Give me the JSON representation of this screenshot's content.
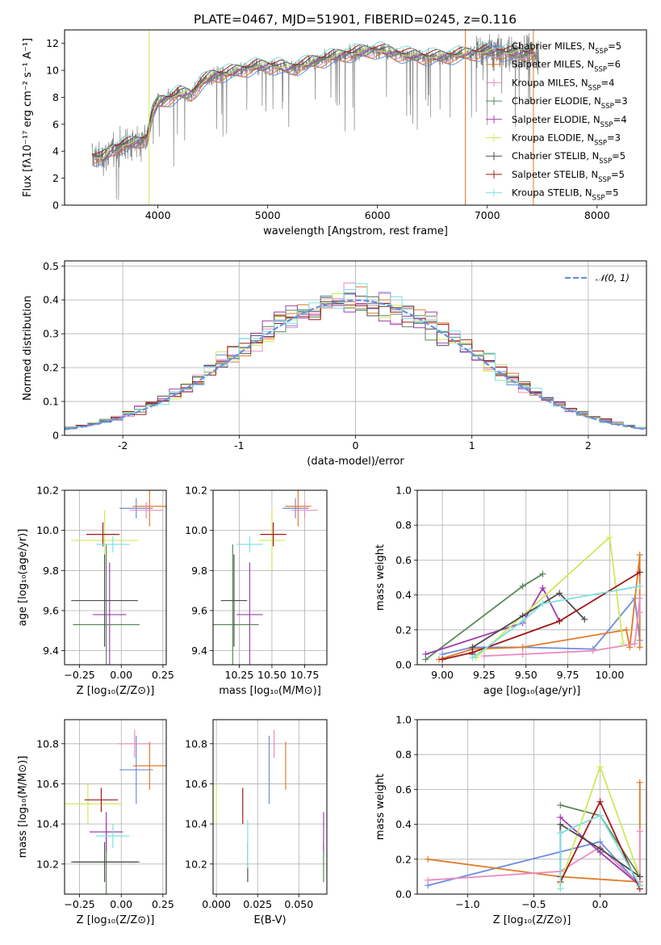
{
  "title": "PLATE=0467, MJD=51901, FIBERID=0245, z=0.116",
  "colors": {
    "Chabrier MILES": "#6a8fdd",
    "Salpeter MILES": "#e07b27",
    "Kroupa MILES": "#ea8cc0",
    "Chabrier ELODIE": "#5a8a5a",
    "Salpeter ELODIE": "#a03cb0",
    "Kroupa ELODIE": "#cfe85c",
    "Chabrier STELIB": "#4d4d4d",
    "Salpeter STELIB": "#a01a1a",
    "Kroupa STELIB": "#7ee0e0",
    "gaussian": "#6a8fdd",
    "data": "#808080"
  },
  "chart_data": [
    {
      "type": "line",
      "xlabel": "wavelength [Angstrom, rest frame]",
      "ylabel": "Flux [fλ10⁻¹⁷ erg cm⁻² s⁻¹ A⁻¹]",
      "xlim": [
        3150,
        8450
      ],
      "ylim": [
        0,
        13
      ],
      "xticks": [
        4000,
        5000,
        6000,
        7000,
        8000
      ],
      "yticks": [
        0,
        2,
        4,
        6,
        8,
        10,
        12
      ],
      "grid": false,
      "legend": "upper-right",
      "legend_entries": [
        {
          "model": "Chabrier MILES",
          "label": "Chabrier MILES, N",
          "sub": "SSP",
          "tail": "=5"
        },
        {
          "model": "Salpeter MILES",
          "label": "Salpeter MILES, N",
          "sub": "SSP",
          "tail": "=6"
        },
        {
          "model": "Kroupa MILES",
          "label": "Kroupa MILES, N",
          "sub": "SSP",
          "tail": "=4"
        },
        {
          "model": "Chabrier ELODIE",
          "label": "Chabrier ELODIE, N",
          "sub": "SSP",
          "tail": "=3"
        },
        {
          "model": "Salpeter ELODIE",
          "label": "Salpeter ELODIE, N",
          "sub": "SSP",
          "tail": "=4"
        },
        {
          "model": "Kroupa ELODIE",
          "label": "Kroupa ELODIE, N",
          "sub": "SSP",
          "tail": "=3"
        },
        {
          "model": "Chabrier STELIB",
          "label": "Chabrier STELIB, N",
          "sub": "SSP",
          "tail": "=5"
        },
        {
          "model": "Salpeter STELIB",
          "label": "Salpeter STELIB, N",
          "sub": "SSP",
          "tail": "=5"
        },
        {
          "model": "Kroupa STELIB",
          "label": "Kroupa STELIB, N",
          "sub": "SSP",
          "tail": "=5"
        }
      ],
      "spectrum_knots": [
        [
          3400,
          3.6
        ],
        [
          3500,
          3.5
        ],
        [
          3600,
          4.2
        ],
        [
          3700,
          4.5
        ],
        [
          3800,
          4.6
        ],
        [
          3900,
          5.0
        ],
        [
          3950,
          6.8
        ],
        [
          4000,
          7.6
        ],
        [
          4100,
          7.9
        ],
        [
          4200,
          8.3
        ],
        [
          4300,
          8.2
        ],
        [
          4400,
          9.1
        ],
        [
          4500,
          9.6
        ],
        [
          4700,
          9.9
        ],
        [
          4900,
          10.3
        ],
        [
          5100,
          10.3
        ],
        [
          5200,
          10.1
        ],
        [
          5400,
          10.6
        ],
        [
          5600,
          11.0
        ],
        [
          5800,
          11.3
        ],
        [
          6000,
          11.5
        ],
        [
          6200,
          11.2
        ],
        [
          6400,
          11.0
        ],
        [
          6600,
          11.0
        ],
        [
          6800,
          11.2
        ],
        [
          7000,
          11.4
        ],
        [
          7200,
          11.3
        ],
        [
          7400,
          11.2
        ]
      ],
      "model_end": 7420,
      "data_end": 7470
    },
    {
      "type": "histogram",
      "xlabel": "(data-model)/error",
      "ylabel": "Normed distribution",
      "xlim": [
        -2.5,
        2.5
      ],
      "ylim": [
        0,
        0.515
      ],
      "xticks": [
        -2,
        -1,
        0,
        1,
        2
      ],
      "yticks": [
        0.0,
        0.1,
        0.2,
        0.3,
        0.4,
        0.5
      ],
      "grid": true,
      "legend": "upper-right",
      "legend_label": "𝒩(0, 1)",
      "bin_width": 0.1,
      "reference_curve": "standard normal N(0,1)"
    },
    {
      "type": "errorbar",
      "xlabel": "Z [log₁₀(Z/Z⊙)]",
      "ylabel": "age  [log₁₀(age/yr)]",
      "xlim": [
        -0.34,
        0.27
      ],
      "ylim": [
        9.33,
        10.2
      ],
      "xticks": [
        -0.25,
        0.0,
        0.25
      ],
      "xtick_labels": [
        "−0.25",
        "0.00",
        "0.25"
      ],
      "yticks": [
        9.4,
        9.6,
        9.8,
        10.0,
        10.2
      ],
      "ytick_labels": [
        "9.4",
        "9.6",
        "9.8",
        "10.0",
        "10.2"
      ],
      "points": [
        {
          "model": "Chabrier MILES",
          "x": 0.09,
          "xerr": 0.1,
          "y": 10.11,
          "yerr": 0.05
        },
        {
          "model": "Salpeter MILES",
          "x": 0.17,
          "xerr": 0.1,
          "y": 10.12,
          "yerr": 0.1
        },
        {
          "model": "Kroupa MILES",
          "x": 0.15,
          "xerr": 0.1,
          "y": 10.1,
          "yerr": 0.04
        },
        {
          "model": "Chabrier ELODIE",
          "x": -0.09,
          "xerr": 0.2,
          "y": 9.53,
          "yerr": 0.4
        },
        {
          "model": "Salpeter ELODIE",
          "x": -0.07,
          "xerr": 0.1,
          "y": 9.58,
          "yerr": 0.26
        },
        {
          "model": "Kroupa ELODIE",
          "x": -0.1,
          "xerr": 0.2,
          "y": 9.95,
          "yerr": 0.15
        },
        {
          "model": "Chabrier STELIB",
          "x": -0.1,
          "xerr": 0.2,
          "y": 9.65,
          "yerr": 0.23
        },
        {
          "model": "Salpeter STELIB",
          "x": -0.11,
          "xerr": 0.1,
          "y": 9.98,
          "yerr": 0.06
        },
        {
          "model": "Kroupa STELIB",
          "x": -0.05,
          "xerr": 0.1,
          "y": 9.93,
          "yerr": 0.04
        }
      ]
    },
    {
      "type": "errorbar",
      "xlabel": "mass [log₁₀(M/M⊙)]",
      "ylabel": "",
      "xlim": [
        10.05,
        10.92
      ],
      "ylim": [
        9.33,
        10.2
      ],
      "xticks": [
        10.25,
        10.5,
        10.75
      ],
      "xtick_labels": [
        "10.25",
        "10.50",
        "10.75"
      ],
      "yticks": [
        9.4,
        9.6,
        9.8,
        10.0,
        10.2
      ],
      "ytick_labels": [
        "9.4",
        "9.6",
        "9.8",
        "10.0",
        "10.2"
      ],
      "points": [
        {
          "model": "Chabrier MILES",
          "x": 10.68,
          "xerr": 0.1,
          "y": 10.11,
          "yerr": 0.05
        },
        {
          "model": "Salpeter MILES",
          "x": 10.7,
          "xerr": 0.1,
          "y": 10.12,
          "yerr": 0.1
        },
        {
          "model": "Kroupa MILES",
          "x": 10.75,
          "xerr": 0.1,
          "y": 10.1,
          "yerr": 0.04
        },
        {
          "model": "Chabrier ELODIE",
          "x": 10.2,
          "xerr": 0.2,
          "y": 9.53,
          "yerr": 0.4
        },
        {
          "model": "Salpeter ELODIE",
          "x": 10.33,
          "xerr": 0.1,
          "y": 9.58,
          "yerr": 0.26
        },
        {
          "model": "Kroupa ELODIE",
          "x": 10.5,
          "xerr": 0.1,
          "y": 9.95,
          "yerr": 0.15
        },
        {
          "model": "Chabrier STELIB",
          "x": 10.21,
          "xerr": 0.1,
          "y": 9.65,
          "yerr": 0.23
        },
        {
          "model": "Salpeter STELIB",
          "x": 10.51,
          "xerr": 0.1,
          "y": 9.98,
          "yerr": 0.06
        },
        {
          "model": "Kroupa STELIB",
          "x": 10.33,
          "xerr": 0.1,
          "y": 9.93,
          "yerr": 0.04
        }
      ]
    },
    {
      "type": "line",
      "xlabel": "age  [log₁₀(age/yr)]",
      "ylabel": "mass weight",
      "xlim": [
        8.85,
        10.22
      ],
      "ylim": [
        0,
        1
      ],
      "xticks": [
        9.0,
        9.25,
        9.5,
        9.75,
        10.0
      ],
      "xtick_labels": [
        "9.00",
        "9.25",
        "9.50",
        "9.75",
        "10.00"
      ],
      "yticks": [
        0.0,
        0.2,
        0.4,
        0.6,
        0.8,
        1.0
      ],
      "ytick_labels": [
        "0.0",
        "0.2",
        "0.4",
        "0.6",
        "0.8",
        "1.0"
      ],
      "grid": true,
      "series": [
        {
          "model": "Chabrier MILES",
          "x": [
            9.0,
            9.18,
            9.48,
            9.9,
            10.15,
            10.18
          ],
          "y": [
            0.06,
            0.1,
            0.1,
            0.09,
            0.38,
            0.14
          ]
        },
        {
          "model": "Salpeter MILES",
          "x": [
            8.98,
            9.18,
            9.48,
            10.1,
            10.12,
            10.18,
            10.18
          ],
          "y": [
            0.03,
            0.09,
            0.1,
            0.2,
            0.1,
            0.63,
            0.1
          ]
        },
        {
          "model": "Kroupa MILES",
          "x": [
            9.25,
            9.48,
            9.9,
            10.15,
            10.18,
            10.18
          ],
          "y": [
            0.05,
            0.06,
            0.08,
            0.12,
            0.38,
            0.3
          ]
        },
        {
          "model": "Chabrier ELODIE",
          "x": [
            8.9,
            9.48,
            9.6
          ],
          "y": [
            0.03,
            0.45,
            0.52
          ]
        },
        {
          "model": "Salpeter ELODIE",
          "x": [
            8.9,
            9.48,
            9.6,
            9.7
          ],
          "y": [
            0.06,
            0.24,
            0.44,
            0.25
          ]
        },
        {
          "model": "Kroupa ELODIE",
          "x": [
            9.2,
            10.0,
            10.08
          ],
          "y": [
            0.04,
            0.73,
            0.12
          ]
        },
        {
          "model": "Chabrier STELIB",
          "x": [
            9.18,
            9.18,
            9.48,
            9.7,
            9.85
          ],
          "y": [
            0.06,
            0.1,
            0.28,
            0.41,
            0.26
          ]
        },
        {
          "model": "Salpeter STELIB",
          "x": [
            9.0,
            9.18,
            9.7,
            10.18
          ],
          "y": [
            0.03,
            0.07,
            0.25,
            0.53
          ]
        },
        {
          "model": "Kroupa STELIB",
          "x": [
            9.18,
            9.48,
            9.6,
            10.18
          ],
          "y": [
            0.04,
            0.25,
            0.35,
            0.45
          ]
        }
      ]
    },
    {
      "type": "errorbar",
      "xlabel": "Z [log₁₀(Z/Z⊙)]",
      "ylabel": "mass [log₁₀(M/M⊙)]",
      "xlim": [
        -0.34,
        0.27
      ],
      "ylim": [
        10.05,
        10.92
      ],
      "xticks": [
        -0.25,
        0.0,
        0.25
      ],
      "xtick_labels": [
        "−0.25",
        "0.00",
        "0.25"
      ],
      "yticks": [
        10.2,
        10.4,
        10.6,
        10.8
      ],
      "ytick_labels": [
        "10.2",
        "10.4",
        "10.6",
        "10.8"
      ],
      "points": [
        {
          "model": "Chabrier MILES",
          "x": 0.09,
          "xerr": 0.1,
          "y": 10.67,
          "yerr": 0.17
        },
        {
          "model": "Salpeter MILES",
          "x": 0.17,
          "xerr": 0.1,
          "y": 10.69,
          "yerr": 0.12
        },
        {
          "model": "Kroupa MILES",
          "x": 0.08,
          "xerr": 0.1,
          "y": 10.8,
          "yerr": 0.07
        },
        {
          "model": "Chabrier ELODIE",
          "x": -0.09,
          "xerr": 0.2,
          "y": 10.21,
          "yerr": 0.2
        },
        {
          "model": "Salpeter ELODIE",
          "x": -0.09,
          "xerr": 0.1,
          "y": 10.36,
          "yerr": 0.1
        },
        {
          "model": "Kroupa ELODIE",
          "x": -0.2,
          "xerr": 0.2,
          "y": 10.5,
          "yerr": 0.1
        },
        {
          "model": "Chabrier STELIB",
          "x": -0.1,
          "xerr": 0.2,
          "y": 10.21,
          "yerr": 0.1
        },
        {
          "model": "Salpeter STELIB",
          "x": -0.12,
          "xerr": 0.1,
          "y": 10.52,
          "yerr": 0.06
        },
        {
          "model": "Kroupa STELIB",
          "x": -0.05,
          "xerr": 0.1,
          "y": 10.34,
          "yerr": 0.06
        }
      ]
    },
    {
      "type": "errorbar",
      "xlabel": "E(B-V)",
      "ylabel": "",
      "xlim": [
        -0.002,
        0.067
      ],
      "ylim": [
        10.05,
        10.92
      ],
      "xticks": [
        0.0,
        0.025,
        0.05
      ],
      "xtick_labels": [
        "0.000",
        "0.025",
        "0.050"
      ],
      "yticks": [
        10.2,
        10.4,
        10.6,
        10.8
      ],
      "ytick_labels": [
        "10.2",
        "10.4",
        "10.6",
        "10.8"
      ],
      "points": [
        {
          "model": "Chabrier MILES",
          "x": 0.032,
          "y": 10.67,
          "yerr": 0.17
        },
        {
          "model": "Salpeter MILES",
          "x": 0.042,
          "y": 10.69,
          "yerr": 0.12
        },
        {
          "model": "Kroupa MILES",
          "x": 0.035,
          "y": 10.8,
          "yerr": 0.07
        },
        {
          "model": "Chabrier ELODIE",
          "x": 0.065,
          "y": 10.21,
          "yerr": 0.1
        },
        {
          "model": "Salpeter ELODIE",
          "x": 0.065,
          "y": 10.36,
          "yerr": 0.1
        },
        {
          "model": "Kroupa ELODIE",
          "x": 0.0,
          "y": 10.5,
          "yerr": 0.1
        },
        {
          "model": "Chabrier STELIB",
          "x": 0.019,
          "y": 10.21,
          "yerr": 0.1
        },
        {
          "model": "Salpeter STELIB",
          "x": 0.016,
          "y": 10.49,
          "yerr": 0.09
        },
        {
          "model": "Kroupa STELIB",
          "x": 0.019,
          "y": 10.3,
          "yerr": 0.12
        }
      ]
    },
    {
      "type": "line",
      "xlabel": "Z [log₁₀(Z/Z⊙)]",
      "ylabel": "mass weight",
      "xlim": [
        -1.38,
        0.35
      ],
      "ylim": [
        0,
        1
      ],
      "xticks": [
        -1.0,
        -0.5,
        0.0
      ],
      "xtick_labels": [
        "−1.0",
        "−0.5",
        "0.0"
      ],
      "yticks": [
        0.0,
        0.2,
        0.4,
        0.6,
        0.8,
        1.0
      ],
      "ytick_labels": [
        "0.0",
        "0.2",
        "0.4",
        "0.6",
        "0.8",
        "1.0"
      ],
      "grid": true,
      "series": [
        {
          "model": "Chabrier MILES",
          "x": [
            -1.3,
            0.0,
            0.3
          ],
          "y": [
            0.05,
            0.3,
            0.05
          ]
        },
        {
          "model": "Salpeter MILES",
          "x": [
            -1.3,
            -0.3,
            0.3,
            0.3
          ],
          "y": [
            0.2,
            0.1,
            0.07,
            0.64
          ]
        },
        {
          "model": "Kroupa MILES",
          "x": [
            -1.3,
            -0.3,
            0.0,
            0.3,
            0.3
          ],
          "y": [
            0.08,
            0.13,
            0.27,
            0.05,
            0.36
          ]
        },
        {
          "model": "Chabrier ELODIE",
          "x": [
            -0.3,
            0.0,
            0.3
          ],
          "y": [
            0.51,
            0.45,
            0.1
          ]
        },
        {
          "model": "Salpeter ELODIE",
          "x": [
            -0.3,
            0.0,
            0.3
          ],
          "y": [
            0.44,
            0.24,
            0.05
          ]
        },
        {
          "model": "Kroupa ELODIE",
          "x": [
            -0.3,
            0.0,
            0.3
          ],
          "y": [
            0.06,
            0.73,
            0.1
          ]
        },
        {
          "model": "Chabrier STELIB",
          "x": [
            -0.3,
            -0.3,
            0.0,
            0.3
          ],
          "y": [
            0.1,
            0.4,
            0.26,
            0.1
          ]
        },
        {
          "model": "Salpeter STELIB",
          "x": [
            -0.3,
            0.0,
            0.3
          ],
          "y": [
            0.07,
            0.53,
            0.03
          ]
        },
        {
          "model": "Kroupa STELIB",
          "x": [
            -0.3,
            -0.3,
            0.0,
            0.3
          ],
          "y": [
            0.03,
            0.35,
            0.45,
            0.05
          ]
        }
      ]
    }
  ]
}
